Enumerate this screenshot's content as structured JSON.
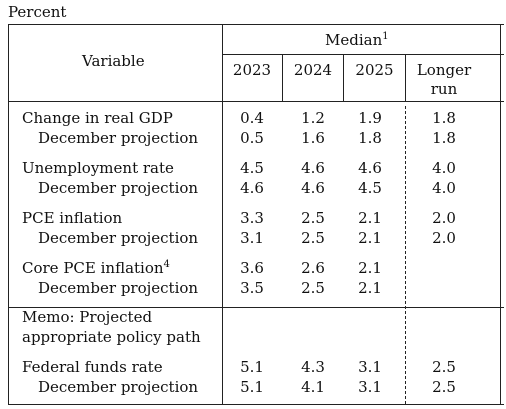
{
  "unit_label": "Percent",
  "header": {
    "variable": "Variable",
    "median": "Median",
    "median_note": "1",
    "years": [
      "2023",
      "2024",
      "2025"
    ],
    "longer_run_line1": "Longer",
    "longer_run_line2": "run"
  },
  "groups": [
    {
      "name": "Change in real GDP",
      "note": "",
      "values": [
        "0.4",
        "1.2",
        "1.9",
        "1.8"
      ],
      "sub_label": "December projection",
      "sub_values": [
        "0.5",
        "1.6",
        "1.8",
        "1.8"
      ]
    },
    {
      "name": "Unemployment rate",
      "note": "",
      "values": [
        "4.5",
        "4.6",
        "4.6",
        "4.0"
      ],
      "sub_label": "December projection",
      "sub_values": [
        "4.6",
        "4.6",
        "4.5",
        "4.0"
      ]
    },
    {
      "name": "PCE inflation",
      "note": "",
      "values": [
        "3.3",
        "2.5",
        "2.1",
        "2.0"
      ],
      "sub_label": "December projection",
      "sub_values": [
        "3.1",
        "2.5",
        "2.1",
        "2.0"
      ]
    },
    {
      "name": "Core PCE inflation",
      "note": "4",
      "values": [
        "3.6",
        "2.6",
        "2.1",
        ""
      ],
      "sub_label": "December projection",
      "sub_values": [
        "3.5",
        "2.5",
        "2.1",
        ""
      ]
    }
  ],
  "memo": {
    "line1": "Memo: Projected",
    "line2": "appropriate policy path"
  },
  "fed_funds": {
    "name": "Federal funds rate",
    "values": [
      "5.1",
      "4.3",
      "3.1",
      "2.5"
    ],
    "sub_label": "December projection",
    "sub_values": [
      "5.1",
      "4.1",
      "3.1",
      "2.5"
    ]
  }
}
